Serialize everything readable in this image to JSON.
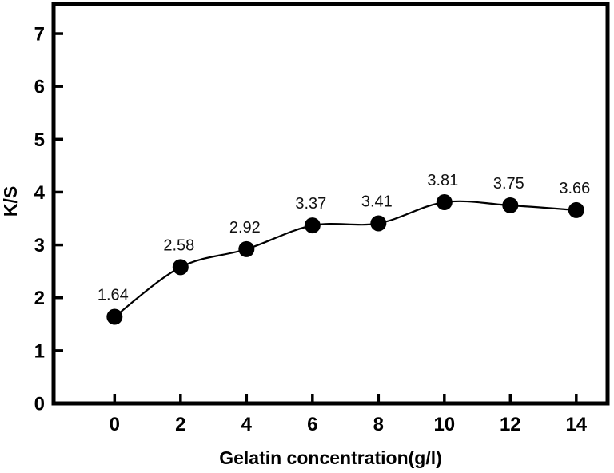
{
  "chart_data": {
    "type": "line",
    "title": "",
    "xlabel": "Gelatin concentration(g/l)",
    "ylabel": "K/S",
    "x": [
      0,
      2,
      4,
      6,
      8,
      10,
      12,
      14
    ],
    "values": [
      1.64,
      2.58,
      2.92,
      3.37,
      3.41,
      3.81,
      3.75,
      3.66
    ],
    "point_labels": [
      "1.64",
      "2.58",
      "2.92",
      "3.37",
      "3.41",
      "3.81",
      "3.75",
      "3.66"
    ],
    "x_ticks": [
      0,
      2,
      4,
      6,
      8,
      10,
      12,
      14
    ],
    "y_ticks": [
      0,
      1,
      2,
      3,
      4,
      5,
      6,
      7
    ],
    "xlim": [
      -1.85,
      14.95
    ],
    "ylim": [
      0,
      7.56
    ],
    "grid": false,
    "legend": "none",
    "line_color": "#000000",
    "marker_color": "#000000",
    "axis_color": "#000000",
    "background_color": "#ffffff"
  }
}
